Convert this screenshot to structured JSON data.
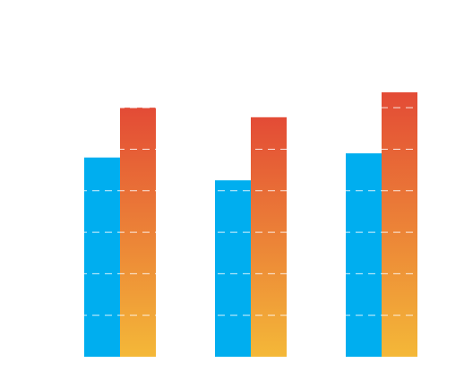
{
  "chart_data": {
    "type": "bar",
    "categories": [
      null,
      null,
      null
    ],
    "series": [
      {
        "color": "#00aeef",
        "values": [
          4.8,
          4.25,
          4.9
        ]
      },
      {
        "color": [
          "#e34b36",
          "#f4b838"
        ],
        "values": [
          6.0,
          5.77,
          6.37
        ]
      }
    ],
    "ylim": [
      0,
      6.5
    ],
    "yticks": [
      1,
      2,
      3,
      4,
      5,
      6
    ],
    "grid": true
  }
}
